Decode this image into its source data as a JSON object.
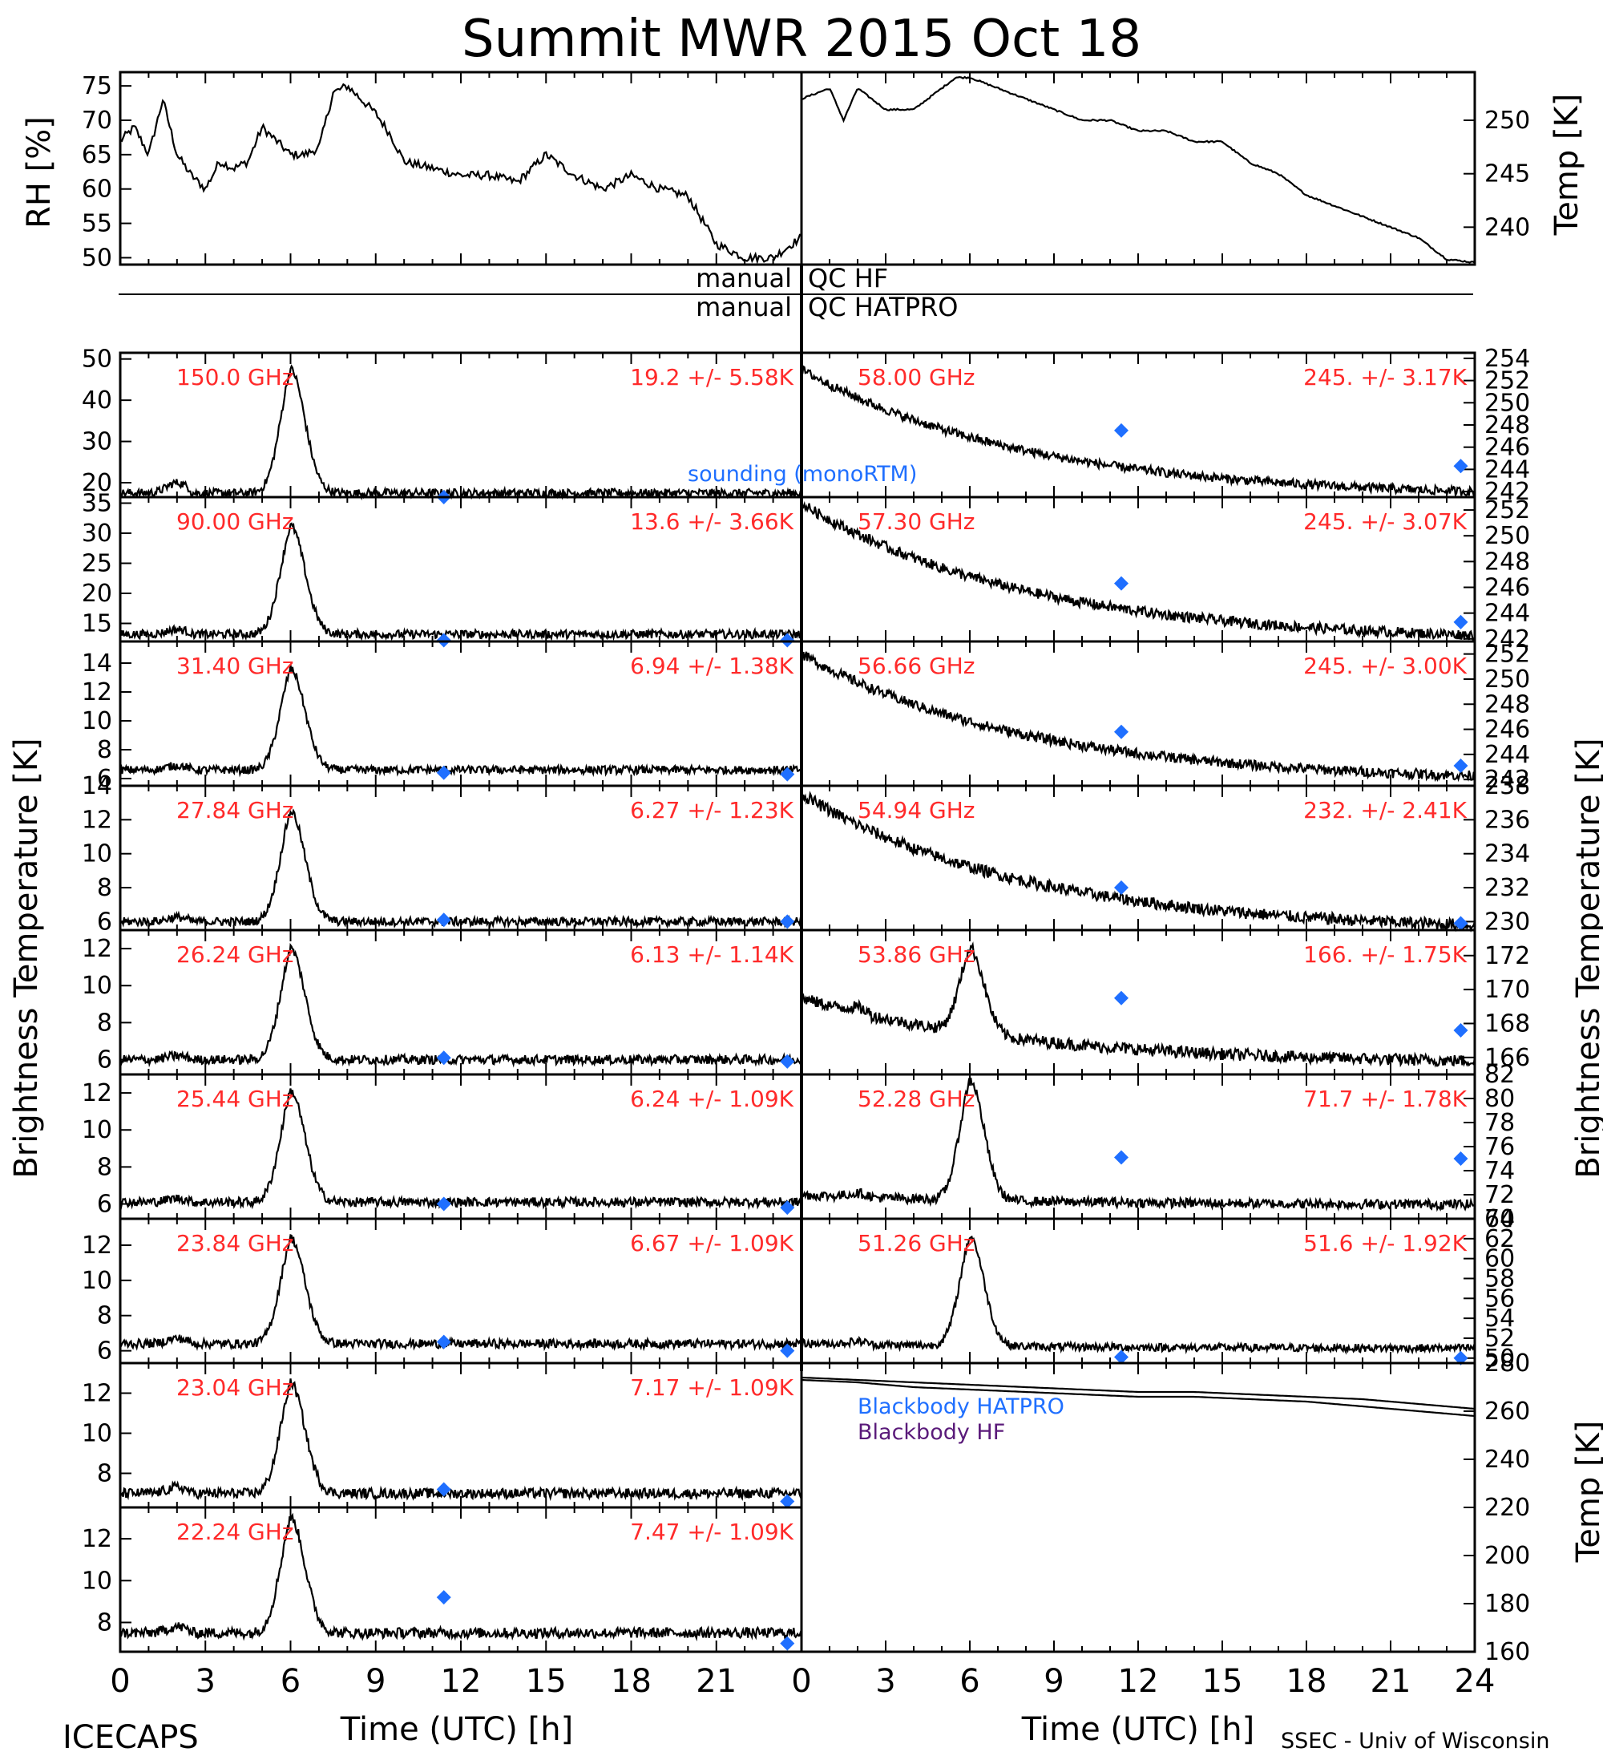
{
  "title": "Summit MWR 2015 Oct 18",
  "footer_left": "ICECAPS",
  "footer_right": "SSEC - Univ of Wisconsin",
  "qc_labels": {
    "hf_left": "manual",
    "hf_right": "QC HF",
    "hatpro_left": "manual",
    "hatpro_right": "QC HATPRO"
  },
  "legend": {
    "sounding": "sounding (monoRTM)",
    "bb_hatpro": "Blackbody HATPRO",
    "bb_hf": "Blackbody HF"
  },
  "colors": {
    "channel_label": "#ff2a2a",
    "sounding": "#1f6fff",
    "bb_hatpro": "#1f6fff",
    "bb_hf": "#5a1a7a",
    "trace": "#000000"
  },
  "axis_labels": {
    "rh": "RH [%]",
    "temp_top": "Temp [K]",
    "tb_left": "Brightness Temperature [K]",
    "tb_right": "Brightness Temperature [K]",
    "temp_bb": "Temp [K]",
    "time_left": "Time (UTC) [h]",
    "time_right": "Time (UTC) [h]"
  },
  "chart_data": [
    {
      "type": "line",
      "id": "rh",
      "side": "left",
      "ylabel": "RH [%]",
      "xlim": [
        0,
        24
      ],
      "ylim": [
        49,
        77
      ],
      "yticks": [
        50,
        55,
        60,
        65,
        70,
        75
      ],
      "series": [
        {
          "x": [
            0,
            0.5,
            1,
            1.5,
            2,
            2.5,
            3,
            3.5,
            4,
            4.5,
            5,
            5.5,
            6,
            6.5,
            7,
            7.5,
            8,
            8.5,
            9,
            9.5,
            10,
            11,
            12,
            13,
            14,
            15,
            16,
            17,
            18,
            19,
            20,
            21,
            22,
            23,
            24
          ],
          "y": [
            67,
            69,
            65,
            73,
            65,
            62,
            60,
            64,
            63,
            64,
            69,
            67,
            65,
            65,
            66,
            74,
            75,
            73,
            71,
            68,
            64,
            63,
            62,
            62,
            61,
            65,
            62,
            60,
            62,
            60,
            59,
            52,
            50,
            50,
            53
          ]
        }
      ]
    },
    {
      "type": "line",
      "id": "temp",
      "side": "right",
      "ylabel": "Temp [K]",
      "xlim": [
        0,
        24
      ],
      "ylim": [
        236.5,
        254.5
      ],
      "yticks": [
        240,
        245,
        250
      ],
      "series": [
        {
          "x": [
            0,
            1,
            1.5,
            2,
            3,
            4,
            5,
            5.5,
            6,
            7,
            8,
            9,
            10,
            11,
            12,
            13,
            14,
            15,
            16,
            17,
            18,
            19,
            20,
            21,
            22,
            23,
            24
          ],
          "y": [
            252,
            253,
            250,
            253,
            251,
            251,
            253,
            254,
            254,
            253,
            252,
            251,
            250,
            250,
            249,
            249,
            248,
            248,
            246,
            245,
            243,
            242,
            241,
            240,
            239,
            237,
            236.7
          ]
        }
      ]
    },
    {
      "type": "line",
      "id": "ch150",
      "side": "left",
      "label": "150.0 GHz",
      "stats": "19.2 +/-  5.58K",
      "ylim": [
        16.5,
        51.5
      ],
      "yticks": [
        20,
        30,
        40,
        50
      ],
      "baseline": 17.5,
      "bump": [
        0,
        2.5
      ],
      "peak": 30,
      "trend": [
        0,
        0
      ],
      "noise": 1.0,
      "sounding": [
        [
          11.4,
          16.5
        ]
      ]
    },
    {
      "type": "line",
      "id": "ch90",
      "side": "left",
      "label": "90.00 GHz",
      "stats": "13.6 +/-  3.66K",
      "ylim": [
        12,
        36
      ],
      "yticks": [
        15,
        20,
        25,
        30,
        35
      ],
      "baseline": 13.2,
      "bump": [
        0,
        0.8
      ],
      "peak": 18,
      "trend": [
        0,
        0
      ],
      "noise": 0.7,
      "sounding": [
        [
          11.4,
          12.2
        ],
        [
          23.5,
          12.2
        ]
      ]
    },
    {
      "type": "line",
      "id": "ch3140",
      "side": "left",
      "label": "31.40 GHz",
      "stats": "6.94 +/- 1.38K",
      "ylim": [
        5.5,
        15.5
      ],
      "yticks": [
        6,
        8,
        10,
        12,
        14
      ],
      "baseline": 6.6,
      "bump": [
        0,
        0.3
      ],
      "peak": 7,
      "trend": [
        0,
        0
      ],
      "noise": 0.28,
      "sounding": [
        [
          11.4,
          6.4
        ],
        [
          23.5,
          6.3
        ]
      ]
    },
    {
      "type": "line",
      "id": "ch2784",
      "side": "left",
      "label": "27.84 GHz",
      "stats": "6.27 +/- 1.23K",
      "ylim": [
        5.5,
        14
      ],
      "yticks": [
        6,
        8,
        10,
        12,
        14
      ],
      "baseline": 6.0,
      "bump": [
        0,
        0.25
      ],
      "peak": 6.5,
      "trend": [
        0,
        0
      ],
      "noise": 0.25,
      "sounding": [
        [
          11.4,
          6.1
        ],
        [
          23.5,
          6.0
        ]
      ]
    },
    {
      "type": "line",
      "id": "ch2624",
      "side": "left",
      "label": "26.24 GHz",
      "stats": "6.13 +/- 1.14K",
      "ylim": [
        5.2,
        13
      ],
      "yticks": [
        6,
        8,
        10,
        12
      ],
      "baseline": 6.0,
      "bump": [
        0,
        0.2
      ],
      "peak": 6,
      "trend": [
        0,
        0
      ],
      "noise": 0.25,
      "sounding": [
        [
          11.4,
          6.1
        ],
        [
          23.5,
          5.9
        ]
      ]
    },
    {
      "type": "line",
      "id": "ch2544",
      "side": "left",
      "label": "25.44 GHz",
      "stats": "6.24 +/- 1.09K",
      "ylim": [
        5.2,
        13
      ],
      "yticks": [
        6,
        8,
        10,
        12
      ],
      "baseline": 6.1,
      "bump": [
        0,
        0.2
      ],
      "peak": 6,
      "trend": [
        0,
        0
      ],
      "noise": 0.25,
      "sounding": [
        [
          11.4,
          6.0
        ],
        [
          23.5,
          5.8
        ]
      ]
    },
    {
      "type": "line",
      "id": "ch2384",
      "side": "left",
      "label": "23.84 GHz",
      "stats": "6.67 +/- 1.09K",
      "ylim": [
        5.3,
        13.5
      ],
      "yticks": [
        6,
        8,
        10,
        12
      ],
      "baseline": 6.4,
      "bump": [
        0,
        0.3
      ],
      "peak": 6,
      "trend": [
        0,
        0
      ],
      "noise": 0.25,
      "sounding": [
        [
          11.4,
          6.5
        ],
        [
          23.5,
          6.0
        ]
      ]
    },
    {
      "type": "line",
      "id": "ch2304",
      "side": "left",
      "label": "23.04 GHz",
      "stats": "7.17 +/- 1.09K",
      "ylim": [
        6.3,
        13.5
      ],
      "yticks": [
        8,
        10,
        12
      ],
      "baseline": 7.0,
      "bump": [
        0,
        0.3
      ],
      "peak": 5.5,
      "trend": [
        0,
        0
      ],
      "noise": 0.25,
      "sounding": [
        [
          11.4,
          7.2
        ],
        [
          23.5,
          6.6
        ]
      ]
    },
    {
      "type": "line",
      "id": "ch2224",
      "side": "left",
      "label": "22.24 GHz",
      "stats": "7.47 +/- 1.09K",
      "ylim": [
        6.6,
        13.5
      ],
      "yticks": [
        8,
        10,
        12
      ],
      "baseline": 7.5,
      "bump": [
        0,
        0.3
      ],
      "peak": 5.5,
      "trend": [
        0,
        0
      ],
      "noise": 0.25,
      "sounding": [
        [
          11.4,
          9.2
        ],
        [
          23.5,
          7.0
        ]
      ]
    },
    {
      "type": "line",
      "id": "ch5800",
      "side": "right",
      "label": "58.00 GHz",
      "stats": "245. +/- 3.17K",
      "ylim": [
        241.5,
        254.5
      ],
      "yticks": [
        242,
        244,
        246,
        248,
        250,
        252,
        254
      ],
      "baseline": 245,
      "bump": [
        0,
        0
      ],
      "peak": 0,
      "trend": [
        253,
        242
      ],
      "noise": 0.4,
      "sounding": [
        [
          11.4,
          247.5
        ],
        [
          23.5,
          244.3
        ]
      ]
    },
    {
      "type": "line",
      "id": "ch5730",
      "side": "right",
      "label": "57.30 GHz",
      "stats": "245. +/- 3.07K",
      "ylim": [
        241.8,
        253
      ],
      "yticks": [
        242,
        244,
        246,
        248,
        250,
        252
      ],
      "baseline": 245,
      "bump": [
        0,
        0
      ],
      "peak": 0,
      "trend": [
        252.5,
        242.3
      ],
      "noise": 0.4,
      "sounding": [
        [
          11.4,
          246.3
        ],
        [
          23.5,
          243.3
        ]
      ]
    },
    {
      "type": "line",
      "id": "ch5666",
      "side": "right",
      "label": "56.66 GHz",
      "stats": "245. +/- 3.00K",
      "ylim": [
        241.5,
        253
      ],
      "yticks": [
        242,
        244,
        246,
        248,
        250,
        252
      ],
      "baseline": 245,
      "bump": [
        0,
        0
      ],
      "peak": 0,
      "trend": [
        252,
        242.3
      ],
      "noise": 0.4,
      "sounding": [
        [
          11.4,
          245.8
        ],
        [
          23.5,
          243.1
        ]
      ]
    },
    {
      "type": "line",
      "id": "ch5494",
      "side": "right",
      "label": "54.94 GHz",
      "stats": "232. +/- 2.41K",
      "ylim": [
        229.5,
        238
      ],
      "yticks": [
        230,
        232,
        234,
        236,
        238
      ],
      "baseline": 232,
      "bump": [
        0,
        0
      ],
      "peak": 0,
      "trend": [
        237.5,
        229.8
      ],
      "noise": 0.35,
      "sounding": [
        [
          11.4,
          232.0
        ],
        [
          23.5,
          229.9
        ]
      ]
    },
    {
      "type": "line",
      "id": "ch5386",
      "side": "right",
      "label": "53.86 GHz",
      "stats": "166. +/- 1.75K",
      "ylim": [
        165,
        173.5
      ],
      "yticks": [
        166,
        168,
        170,
        172
      ],
      "baseline": 165.8,
      "bump": [
        0,
        0.3
      ],
      "peak": 5,
      "trend": [
        169.5,
        165.8
      ],
      "noise": 0.35,
      "sounding": [
        [
          11.4,
          169.5
        ],
        [
          23.5,
          167.6
        ]
      ]
    },
    {
      "type": "line",
      "id": "ch5228",
      "side": "right",
      "label": "52.28 GHz",
      "stats": "71.7 +/- 1.78K",
      "ylim": [
        70,
        82
      ],
      "yticks": [
        70,
        72,
        74,
        76,
        78,
        80,
        82
      ],
      "baseline": 71.2,
      "bump": [
        0,
        0.3
      ],
      "peak": 10,
      "trend": [
        72,
        71.2
      ],
      "noise": 0.4,
      "sounding": [
        [
          11.4,
          75.1
        ],
        [
          23.5,
          75.0
        ]
      ]
    },
    {
      "type": "line",
      "id": "ch5126",
      "side": "right",
      "label": "51.26 GHz",
      "stats": "51.6 +/- 1.92K",
      "ylim": [
        49.5,
        64
      ],
      "yticks": [
        50,
        52,
        54,
        56,
        58,
        60,
        62,
        64
      ],
      "baseline": 51.0,
      "bump": [
        0,
        0.3
      ],
      "peak": 11,
      "trend": [
        51.5,
        51.0
      ],
      "noise": 0.4,
      "sounding": [
        [
          11.4,
          50.1
        ],
        [
          23.5,
          50.0
        ]
      ]
    },
    {
      "type": "line",
      "id": "blackbody",
      "side": "right",
      "ylabel": "Temp [K]",
      "xlim": [
        0,
        24
      ],
      "ylim": [
        160,
        280
      ],
      "yticks": [
        160,
        180,
        200,
        220,
        240,
        260,
        280
      ],
      "series": [
        {
          "name": "Blackbody HATPRO",
          "x": [
            0,
            2,
            4,
            6,
            8,
            10,
            12,
            14,
            16,
            18,
            20,
            22,
            24
          ],
          "y": [
            274,
            273,
            272,
            271,
            270,
            269,
            268,
            268,
            267,
            266,
            265,
            263,
            261
          ]
        },
        {
          "name": "Blackbody HF",
          "x": [
            0,
            2,
            4,
            6,
            8,
            10,
            12,
            14,
            16,
            18,
            20,
            22,
            24
          ],
          "y": [
            273,
            272,
            270,
            269,
            268,
            267,
            266,
            266,
            265,
            264,
            262,
            260,
            258
          ]
        }
      ]
    }
  ],
  "xticks": [
    0,
    3,
    6,
    9,
    12,
    15,
    18,
    21
  ],
  "xticks_right": [
    0,
    3,
    6,
    9,
    12,
    15,
    18,
    21,
    24
  ]
}
